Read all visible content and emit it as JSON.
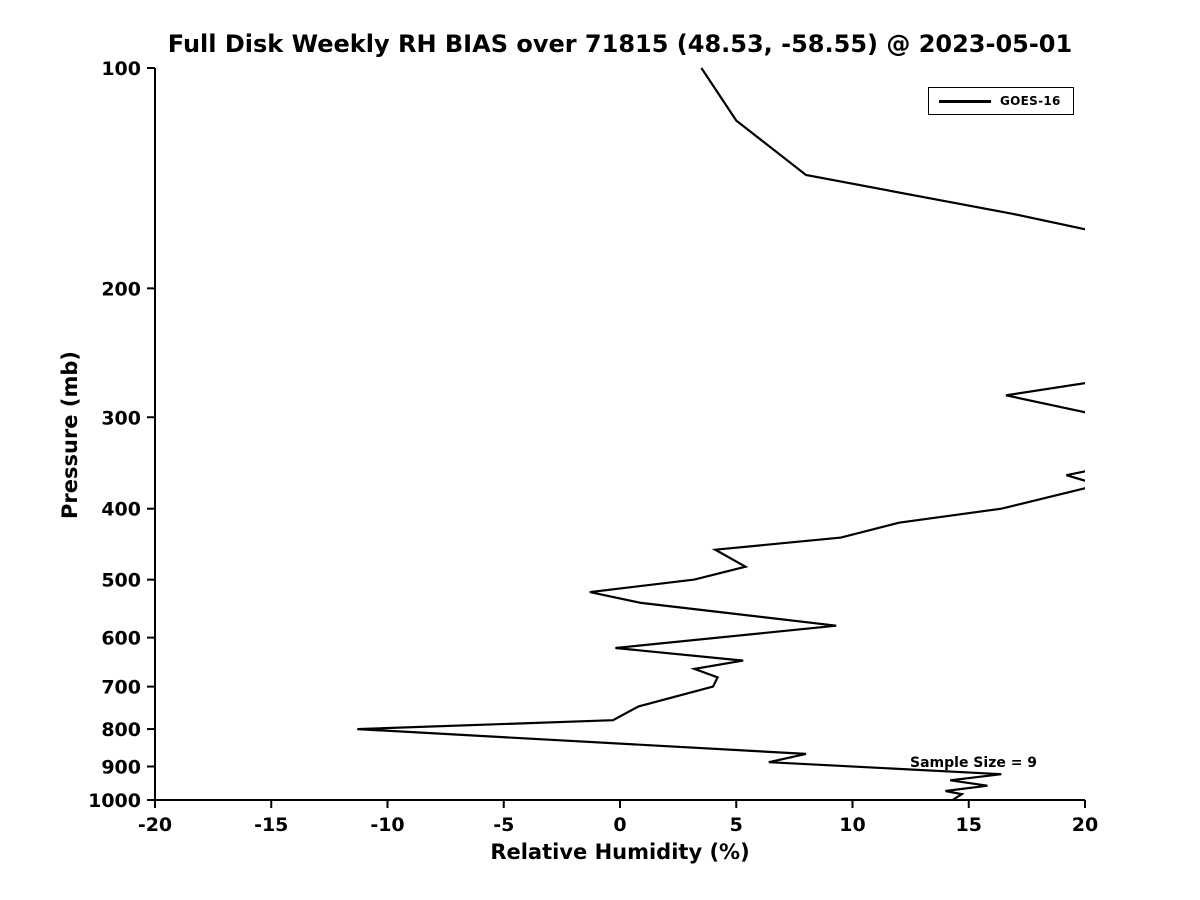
{
  "chart_data": {
    "type": "line",
    "title": "Full Disk Weekly RH BIAS over 71815 (48.53, -58.55) @ 2023-05-01",
    "xlabel": "Relative Humidity (%)",
    "ylabel": "Pressure (mb)",
    "xlim": [
      -20,
      20
    ],
    "ylim": [
      100,
      1000
    ],
    "y_scale": "log",
    "y_inverted": true,
    "grid": false,
    "x_ticks": [
      -20,
      -15,
      -10,
      -5,
      0,
      5,
      10,
      15,
      20
    ],
    "y_ticks": [
      100,
      200,
      300,
      400,
      500,
      600,
      700,
      800,
      900,
      1000
    ],
    "legend": {
      "position": "upper right",
      "entries": [
        {
          "label": "GOES-16",
          "color": "#000000"
        }
      ]
    },
    "annotations": [
      {
        "text": "Sample Size = 9",
        "x": 12.6,
        "y": 895
      }
    ],
    "series": [
      {
        "name": "GOES-16",
        "color": "#000000",
        "pressure_mb": [
          100,
          118,
          140,
          158,
          170,
          265,
          280,
          300,
          345,
          360,
          371,
          400,
          418,
          438,
          455,
          480,
          500,
          520,
          538,
          578,
          620,
          645,
          662,
          680,
          700,
          745,
          778,
          800,
          865,
          888,
          922,
          940,
          956,
          972,
          982,
          1000
        ],
        "rh_bias_pct": [
          3.5,
          5.0,
          8.0,
          16.8,
          21.5,
          21.5,
          16.6,
          21.0,
          22.0,
          19.2,
          20.6,
          16.4,
          12.0,
          9.5,
          4.1,
          5.4,
          3.2,
          -1.3,
          0.9,
          9.3,
          -0.2,
          5.3,
          3.2,
          4.2,
          4.0,
          0.8,
          -0.3,
          -11.3,
          8.0,
          6.4,
          16.4,
          14.2,
          15.8,
          14.0,
          14.7,
          14.3
        ]
      }
    ]
  }
}
